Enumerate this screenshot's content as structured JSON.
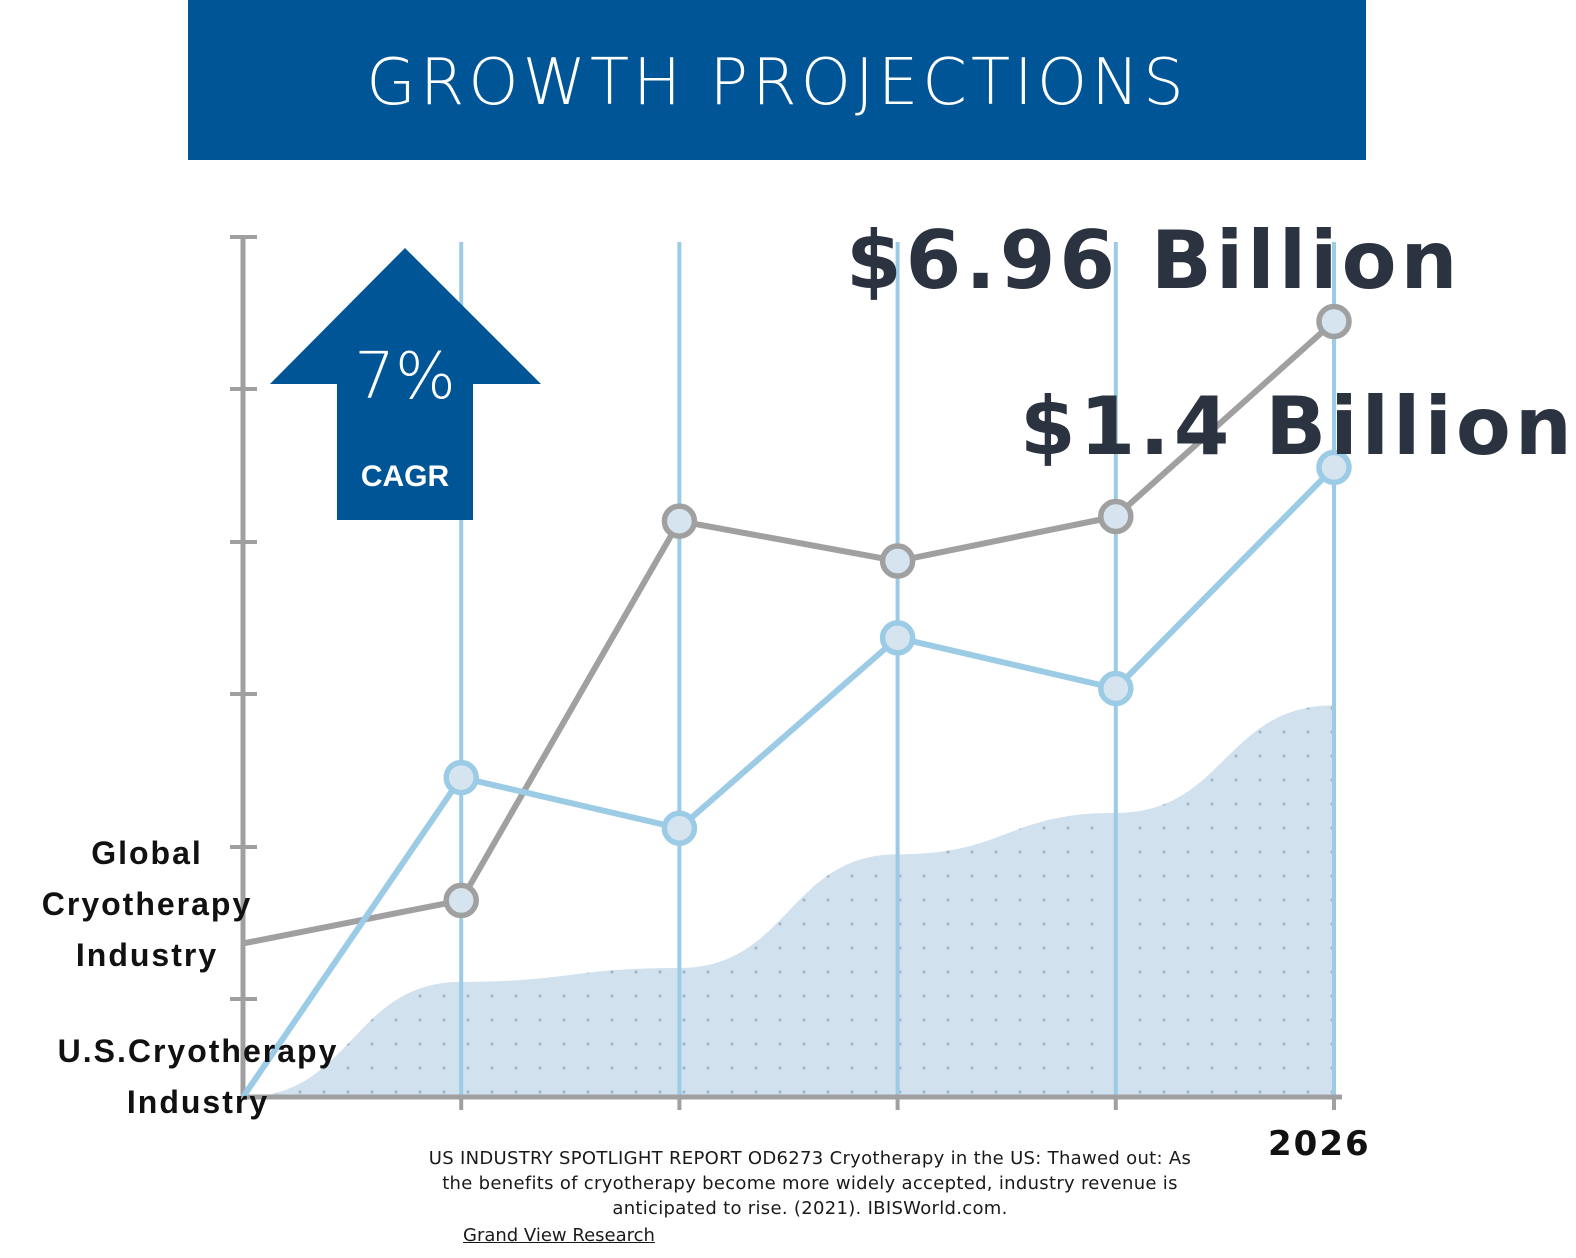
{
  "header": {
    "title": "GROWTH PROJECTIONS"
  },
  "badge": {
    "percent": "7%",
    "label": "CAGR"
  },
  "chart_data": {
    "type": "line",
    "title": "GROWTH PROJECTIONS",
    "x": [
      0,
      1,
      2,
      3,
      4,
      5
    ],
    "xlabel": "",
    "ylabel": "",
    "x_tick_labels": [
      "",
      "",
      "",
      "",
      "",
      "2026"
    ],
    "ylim": [
      0,
      5.6
    ],
    "grid": "vertical lines",
    "series": [
      {
        "name": "Global Cryotherapy Industry",
        "color": "#a0a0a0",
        "values": [
          1.0,
          1.28,
          3.75,
          3.49,
          3.78,
          5.05
        ],
        "end_label": "$6.96 Billion"
      },
      {
        "name": "U.S.Cryotherapy Industry",
        "color": "#9ccbe6",
        "values": [
          0.0,
          2.08,
          1.75,
          2.99,
          2.66,
          4.1
        ],
        "end_label": "$1.4 Billion"
      }
    ],
    "area": {
      "values": [
        0.0,
        0.75,
        0.84,
        1.58,
        1.85,
        2.55
      ],
      "color": "#d2e1ee"
    }
  },
  "labels": {
    "global_end": "$6.96 Billion",
    "us_end": "$1.4 Billion",
    "global_series": "Global Cryotherapy Industry",
    "us_series": "U.S.Cryotherapy Industry",
    "year_2026": "2026"
  },
  "citation": {
    "text": "US INDUSTRY SPOTLIGHT REPORT OD6273 Cryotherapy in the US: Thawed out: As the benefits of cryotherapy become more widely accepted, industry revenue is anticipated to rise. (2021). IBISWorld.com.",
    "link": "Grand View Research"
  },
  "colors": {
    "banner": "#005596",
    "arrow": "#005596",
    "grid": "#9ccbe6",
    "axis": "#a0a0a0"
  }
}
